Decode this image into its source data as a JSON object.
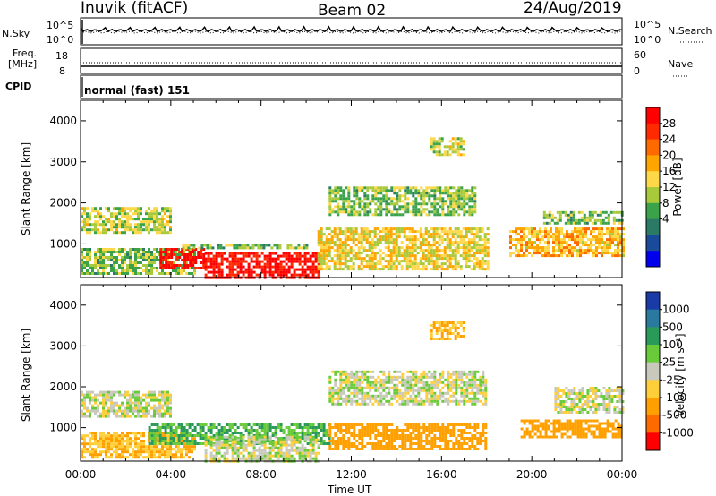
{
  "header": {
    "station": "Inuvik (fitACF)",
    "beam": "Beam 02",
    "date": "24/Aug/2019"
  },
  "panels": {
    "nsky_label": "N.Sky",
    "nsky_ticks": [
      "10^5",
      "10^0"
    ],
    "nsearch_label": "N.Search",
    "nsearch_ticks": [
      "10^5",
      "10^0"
    ],
    "freq_label_line1": "Freq.",
    "freq_label_line2": "[MHz]",
    "freq_ticks": [
      "18",
      "8"
    ],
    "nave_label": "Nave",
    "nave_ticks": [
      "60",
      "0"
    ],
    "cpid_label": "CPID",
    "cpid_text": "normal (fast) 151"
  },
  "colorbars": {
    "power": {
      "title": "Power [dB]",
      "ticks": [
        "28",
        "24",
        "20",
        "16",
        "12",
        "8",
        "4"
      ],
      "colors": [
        "#ff0000",
        "#ff2a00",
        "#ff6a00",
        "#ffa500",
        "#ffd84a",
        "#a8c93a",
        "#3aa34a",
        "#2a7a66",
        "#1a4a9a",
        "#0000ee"
      ]
    },
    "velocity": {
      "title": "Velocity [m s⁻¹]",
      "ticks": [
        "1000",
        "500",
        "100",
        "25",
        "-25",
        "-100",
        "-500",
        "-1000"
      ],
      "colors": [
        "#1a3aa8",
        "#2a7aa0",
        "#2a9a5a",
        "#6acb3a",
        "#c8c8bc",
        "#ffcf3a",
        "#ffa000",
        "#ff6a00",
        "#ff0000"
      ]
    }
  },
  "chart_data": [
    {
      "type": "heatmap",
      "title": "Power",
      "xlabel": "Time UT",
      "ylabel": "Slant Range [km]",
      "x_ticks": [
        "00:00",
        "04:00",
        "08:00",
        "12:00",
        "16:00",
        "20:00",
        "00:00"
      ],
      "y_ticks": [
        1000,
        2000,
        3000,
        4000
      ],
      "xlim": [
        0,
        24
      ],
      "ylim": [
        180,
        4500
      ],
      "colorbar": "Power [dB]",
      "regions": [
        {
          "t0": 0.0,
          "t1": 5.0,
          "r0": 300,
          "r1": 900,
          "value": 12
        },
        {
          "t0": 0.0,
          "t1": 4.0,
          "r0": 1300,
          "r1": 1900,
          "value": 14
        },
        {
          "t0": 3.5,
          "t1": 5.5,
          "r0": 400,
          "r1": 900,
          "value": 28
        },
        {
          "t0": 5.5,
          "t1": 10.5,
          "r0": 180,
          "r1": 800,
          "value": 28
        },
        {
          "t0": 4.5,
          "t1": 10.0,
          "r0": 900,
          "r1": 1000,
          "value": 12
        },
        {
          "t0": 10.5,
          "t1": 18.0,
          "r0": 400,
          "r1": 1400,
          "value": 16
        },
        {
          "t0": 11.0,
          "t1": 17.5,
          "r0": 1700,
          "r1": 2400,
          "value": 12
        },
        {
          "t0": 19.0,
          "t1": 24.0,
          "r0": 700,
          "r1": 1400,
          "value": 18
        },
        {
          "t0": 20.5,
          "t1": 24.0,
          "r0": 1500,
          "r1": 1800,
          "value": 12
        },
        {
          "t0": 15.5,
          "t1": 17.0,
          "r0": 3200,
          "r1": 3600,
          "value": 14
        }
      ]
    },
    {
      "type": "heatmap",
      "title": "Velocity",
      "xlabel": "Time UT",
      "ylabel": "Slant Range [km]",
      "x_ticks": [
        "00:00",
        "04:00",
        "08:00",
        "12:00",
        "16:00",
        "20:00",
        "00:00"
      ],
      "y_ticks": [
        1000,
        2000,
        3000,
        4000
      ],
      "xlim": [
        0,
        24
      ],
      "ylim": [
        180,
        4500
      ],
      "colorbar": "Velocity [m s⁻¹]",
      "regions": [
        {
          "t0": 0.0,
          "t1": 4.0,
          "r0": 1300,
          "r1": 1900,
          "value": 0
        },
        {
          "t0": 0.0,
          "t1": 5.0,
          "r0": 300,
          "r1": 900,
          "value": -100
        },
        {
          "t0": 3.0,
          "t1": 11.0,
          "r0": 600,
          "r1": 1100,
          "value": 100
        },
        {
          "t0": 5.5,
          "t1": 10.5,
          "r0": 180,
          "r1": 800,
          "value": 0
        },
        {
          "t0": 11.0,
          "t1": 18.0,
          "r0": 1600,
          "r1": 2400,
          "value": 0
        },
        {
          "t0": 11.0,
          "t1": 18.0,
          "r0": 500,
          "r1": 1100,
          "value": -300
        },
        {
          "t0": 19.5,
          "t1": 24.0,
          "r0": 800,
          "r1": 1200,
          "value": -300
        },
        {
          "t0": 21.0,
          "t1": 24.0,
          "r0": 1400,
          "r1": 2000,
          "value": 0
        },
        {
          "t0": 15.5,
          "t1": 17.0,
          "r0": 3200,
          "r1": 3600,
          "value": -100
        }
      ]
    }
  ]
}
